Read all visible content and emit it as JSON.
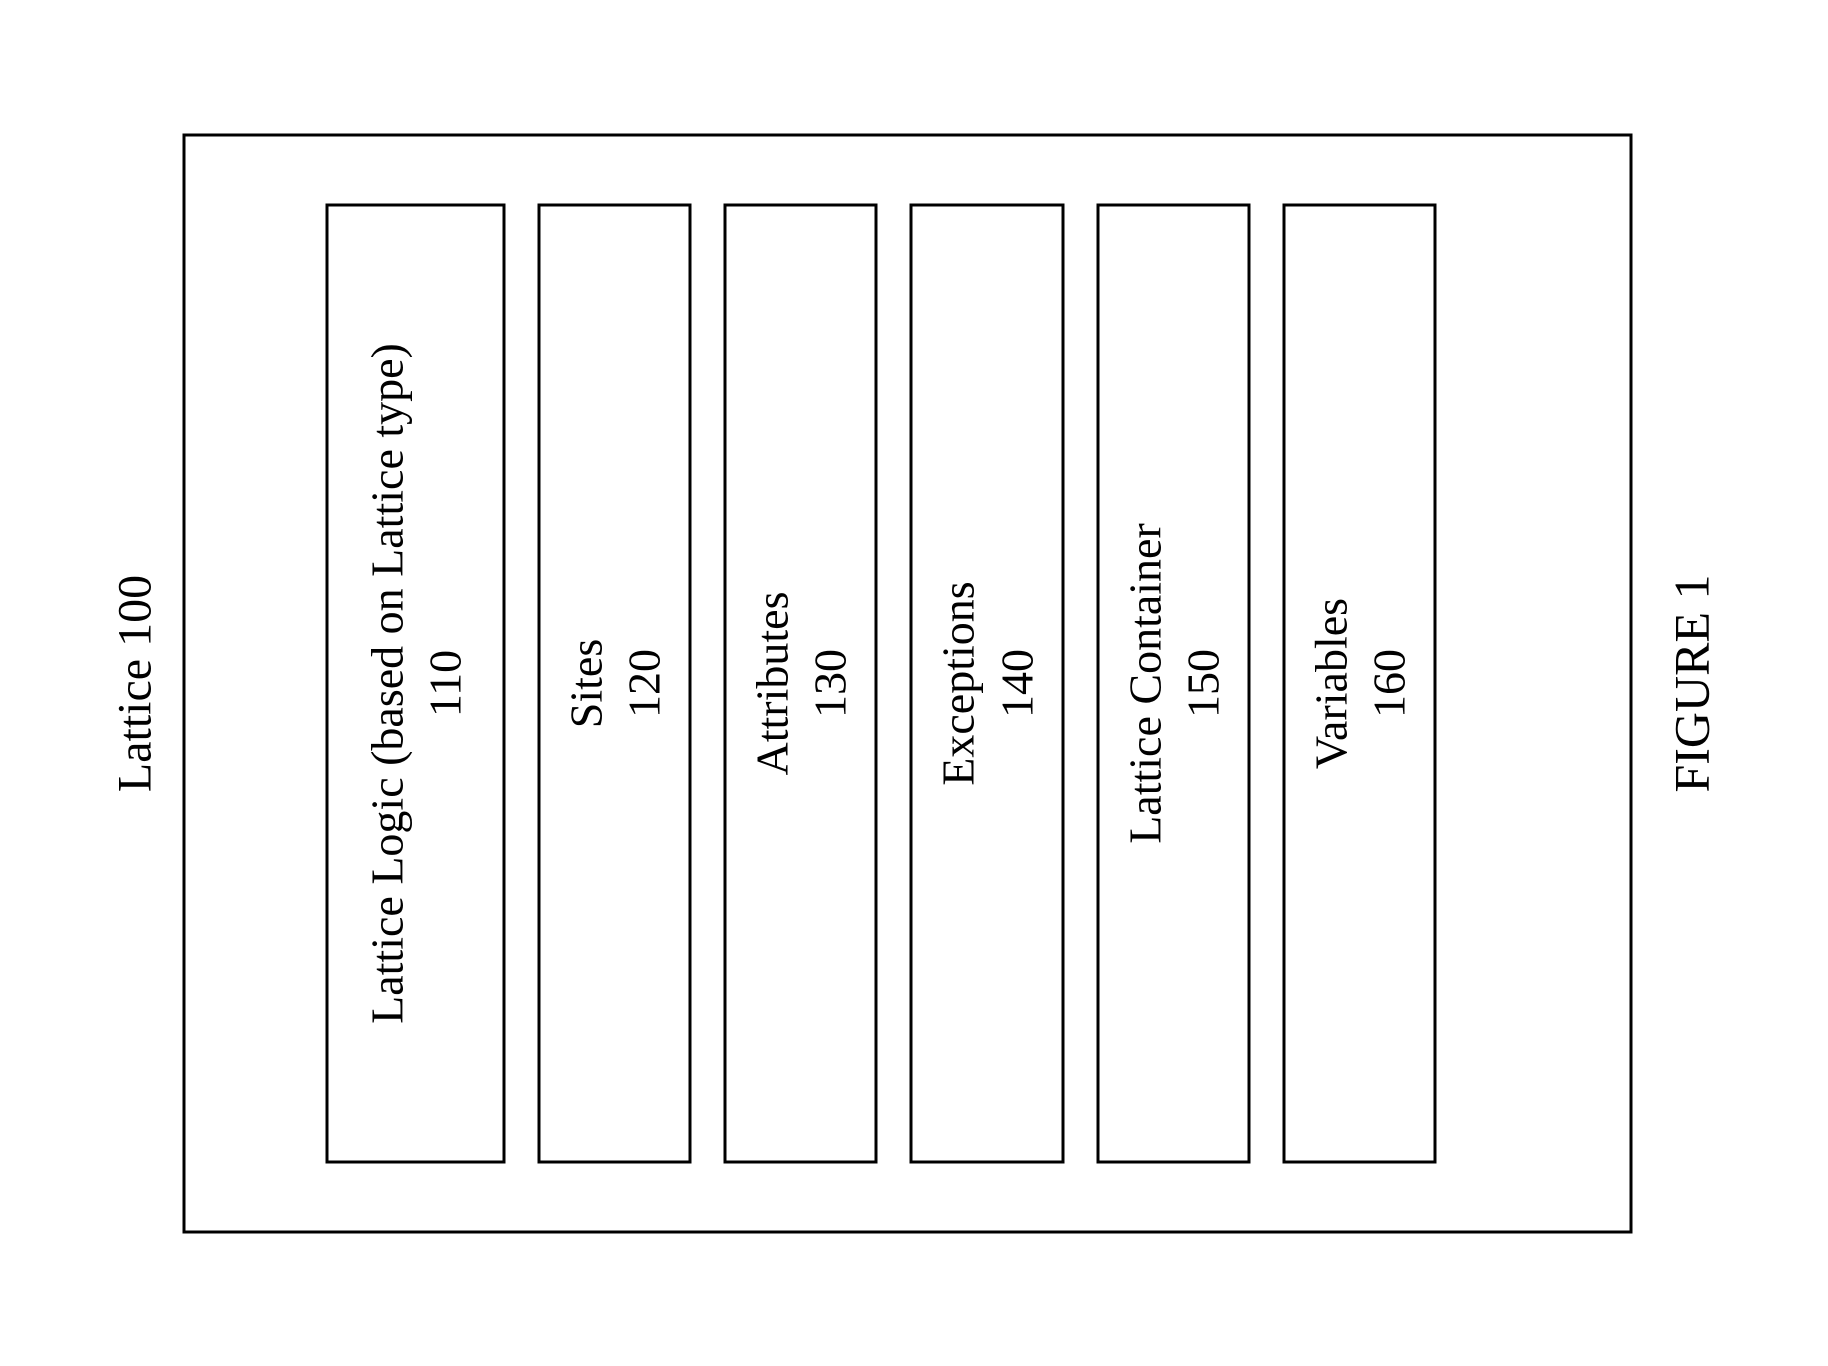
{
  "diagram": {
    "title": "Lattice 100",
    "caption": "FIGURE 1",
    "structure_type": "block-diagram",
    "colors": {
      "background": "#ffffff",
      "border": "#000000",
      "text": "#000000"
    },
    "typography": {
      "font_family": "Times New Roman",
      "title_fontsize": 48,
      "label_fontsize": 46,
      "caption_fontsize": 50
    },
    "layout": {
      "rotation_deg": -90,
      "outer_width": 1100,
      "outer_height": 1450,
      "border_width": 3,
      "box_gap": 32,
      "inner_box_width": 960
    },
    "boxes": [
      {
        "label": "Lattice Logic (based on Lattice type)",
        "number": "110",
        "height_class": "tall"
      },
      {
        "label": "Sites",
        "number": "120",
        "height_class": "regular"
      },
      {
        "label": "Attributes",
        "number": "130",
        "height_class": "regular"
      },
      {
        "label": "Exceptions",
        "number": "140",
        "height_class": "regular"
      },
      {
        "label": "Lattice Container",
        "number": "150",
        "height_class": "regular"
      },
      {
        "label": "Variables",
        "number": "160",
        "height_class": "regular"
      }
    ]
  }
}
